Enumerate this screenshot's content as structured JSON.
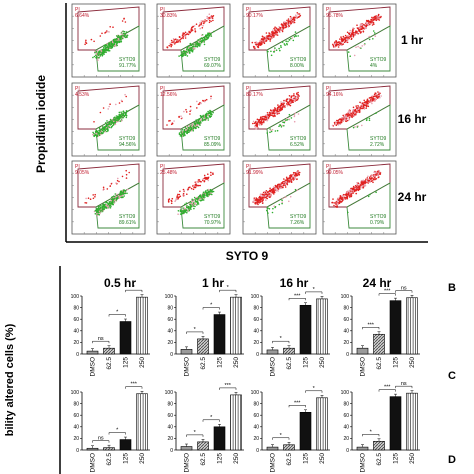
{
  "flow": {
    "ylabel": "Propidium iodide",
    "xlabel": "SYTO 9",
    "rows": [
      {
        "time": "1 hr",
        "cells": [
          {
            "pi": "PI\n6.64%",
            "syto": "SYTO9\n91.77%"
          },
          {
            "pi": "PI\n30.83%",
            "syto": "SYTO9\n69.07%"
          },
          {
            "pi": "PI\n90.17%",
            "syto": "SYTO9\n8.00%"
          },
          {
            "pi": "PI\n95.78%",
            "syto": "SYTO9\n4%"
          }
        ]
      },
      {
        "time": "16 hr",
        "cells": [
          {
            "pi": "PI\n4.53%",
            "syto": "SYTO9\n94.56%"
          },
          {
            "pi": "PI\n12.56%",
            "syto": "SYTO9\n85.09%"
          },
          {
            "pi": "PI\n89.17%",
            "syto": "SYTO9\n6.52%"
          },
          {
            "pi": "PI\n94.16%",
            "syto": "SYTO9\n2.72%"
          }
        ]
      },
      {
        "time": "24 hr",
        "cells": [
          {
            "pi": "PI\n9.05%",
            "syto": "SYTO9\n89.61%"
          },
          {
            "pi": "PI\n25.48%",
            "syto": "SYTO9\n70.97%"
          },
          {
            "pi": "PI\n91.99%",
            "syto": "SYTO9\n7.26%"
          },
          {
            "pi": "PI\n99.05%",
            "syto": "SYTO9\n0.79%"
          }
        ]
      }
    ]
  },
  "bars": {
    "ylabel_fragment": "bility altered cells (%)",
    "col_titles": [
      "0.5 hr",
      "1 hr",
      "16 hr",
      "24 hr"
    ],
    "row_letters": [
      "B",
      "C",
      "D"
    ],
    "yticks": [
      "0",
      "20",
      "40",
      "60",
      "80",
      "100"
    ],
    "categories": [
      "DMSO",
      "62.5",
      "125",
      "250"
    ]
  },
  "chart_data": [
    {
      "type": "bar",
      "title": "0.5 hr",
      "categories": [
        "DMSO",
        "62.5",
        "125",
        "250"
      ],
      "values": [
        5,
        10,
        56,
        98
      ],
      "ylim": [
        0,
        100
      ],
      "sig": [
        "ns",
        "*",
        "*"
      ]
    },
    {
      "type": "bar",
      "title": "1 hr",
      "categories": [
        "DMSO",
        "62.5",
        "125",
        "250"
      ],
      "values": [
        8,
        26,
        68,
        98
      ],
      "ylim": [
        0,
        100
      ],
      "sig": [
        "*",
        "*",
        "*"
      ]
    },
    {
      "type": "bar",
      "title": "16 hr",
      "categories": [
        "DMSO",
        "62.5",
        "125",
        "250"
      ],
      "values": [
        7,
        10,
        84,
        95
      ],
      "ylim": [
        0,
        100
      ],
      "sig": [
        "*",
        "***",
        "*"
      ]
    },
    {
      "type": "bar",
      "title": "24 hr",
      "categories": [
        "DMSO",
        "62.5",
        "125",
        "250"
      ],
      "values": [
        10,
        34,
        92,
        97
      ],
      "ylim": [
        0,
        100
      ],
      "sig": [
        "***",
        "***",
        "ns"
      ]
    },
    {
      "type": "bar",
      "title": "",
      "categories": [
        "DMSO",
        "62.5",
        "125",
        "250"
      ],
      "values": [
        3,
        4,
        18,
        97
      ],
      "ylim": [
        0,
        100
      ],
      "sig": [
        "ns",
        "*",
        "***"
      ]
    },
    {
      "type": "bar",
      "title": "",
      "categories": [
        "DMSO",
        "62.5",
        "125",
        "250"
      ],
      "values": [
        6,
        14,
        40,
        95
      ],
      "ylim": [
        0,
        100
      ],
      "sig": [
        "*",
        "*",
        "***"
      ]
    },
    {
      "type": "bar",
      "title": "",
      "categories": [
        "DMSO",
        "62.5",
        "125",
        "250"
      ],
      "values": [
        5,
        9,
        65,
        90
      ],
      "ylim": [
        0,
        100
      ],
      "sig": [
        "*",
        "***",
        "*"
      ]
    },
    {
      "type": "bar",
      "title": "",
      "categories": [
        "DMSO",
        "62.5",
        "125",
        "250"
      ],
      "values": [
        5,
        15,
        92,
        98
      ],
      "ylim": [
        0,
        100
      ],
      "sig": [
        "*",
        "***",
        "ns"
      ]
    }
  ],
  "colors": {
    "green": "#2fae2f",
    "red": "#e0201f",
    "pink": "#e7a0b0",
    "gate": "#8b2b3c",
    "axis": "#000000"
  }
}
